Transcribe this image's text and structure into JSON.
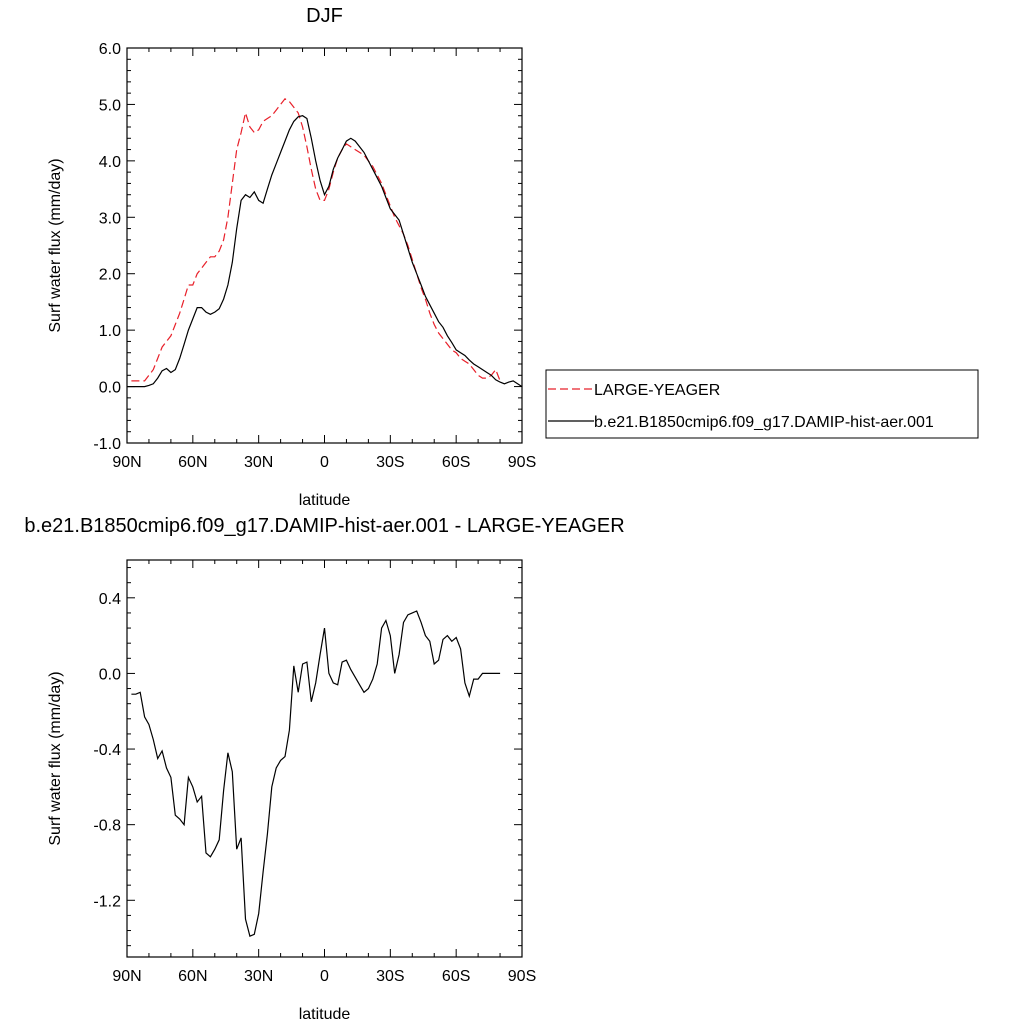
{
  "chart_data": [
    {
      "type": "line",
      "title": "DJF",
      "xlabel": "latitude",
      "ylabel": "Surf water flux (mm/day)",
      "xlim": [
        90,
        -90
      ],
      "ylim": [
        -1.0,
        6.0
      ],
      "xticks": [
        {
          "value": 90,
          "label": "90N"
        },
        {
          "value": 60,
          "label": "60N"
        },
        {
          "value": 30,
          "label": "30N"
        },
        {
          "value": 0,
          "label": "0"
        },
        {
          "value": -30,
          "label": "30S"
        },
        {
          "value": -60,
          "label": "60S"
        },
        {
          "value": -90,
          "label": "90S"
        }
      ],
      "yticks": [
        {
          "value": 6.0,
          "label": "6.0"
        },
        {
          "value": 5.0,
          "label": "5.0"
        },
        {
          "value": 4.0,
          "label": "4.0"
        },
        {
          "value": 3.0,
          "label": "3.0"
        },
        {
          "value": 2.0,
          "label": "2.0"
        },
        {
          "value": 1.0,
          "label": "1.0"
        },
        {
          "value": 0.0,
          "label": "0.0"
        },
        {
          "value": -1.0,
          "label": "-1.0"
        }
      ],
      "legend_position": "right",
      "series": [
        {
          "name": "LARGE-YEAGER",
          "color": "#e8202a",
          "dash": "dashed",
          "x": [
            88,
            85,
            82,
            80,
            78,
            76,
            74,
            72,
            70,
            68,
            66,
            64,
            62,
            60,
            58,
            56,
            54,
            52,
            50,
            48,
            46,
            44,
            42,
            40,
            38,
            36,
            34,
            32,
            30,
            28,
            26,
            24,
            22,
            20,
            18,
            16,
            14,
            12,
            10,
            8,
            6,
            4,
            2,
            0,
            -2,
            -4,
            -6,
            -8,
            -10,
            -12,
            -14,
            -16,
            -18,
            -20,
            -22,
            -24,
            -26,
            -28,
            -30,
            -32,
            -34,
            -36,
            -38,
            -40,
            -42,
            -44,
            -46,
            -48,
            -50,
            -52,
            -54,
            -56,
            -58,
            -60,
            -62,
            -64,
            -66,
            -68,
            -70,
            -72,
            -74,
            -76,
            -78,
            -80
          ],
          "y": [
            0.1,
            0.1,
            0.1,
            0.2,
            0.3,
            0.5,
            0.7,
            0.8,
            0.9,
            1.1,
            1.3,
            1.55,
            1.8,
            1.8,
            2.0,
            2.1,
            2.2,
            2.3,
            2.3,
            2.4,
            2.6,
            3.0,
            3.6,
            4.2,
            4.5,
            4.85,
            4.6,
            4.5,
            4.55,
            4.7,
            4.75,
            4.8,
            4.9,
            5.0,
            5.1,
            5.05,
            4.95,
            4.85,
            4.6,
            4.25,
            3.85,
            3.5,
            3.3,
            3.3,
            3.5,
            3.8,
            4.05,
            4.2,
            4.3,
            4.25,
            4.2,
            4.15,
            4.1,
            4.0,
            3.9,
            3.75,
            3.6,
            3.4,
            3.2,
            3.0,
            2.85,
            2.7,
            2.5,
            2.25,
            2.0,
            1.75,
            1.55,
            1.3,
            1.1,
            0.95,
            0.85,
            0.75,
            0.65,
            0.6,
            0.5,
            0.45,
            0.4,
            0.3,
            0.2,
            0.15,
            0.15,
            0.2,
            0.3,
            0.1
          ]
        },
        {
          "name": "b.e21.B1850cmip6.f09_g17.DAMIP-hist-aer.001",
          "color": "#000000",
          "dash": "solid",
          "x": [
            90,
            86,
            84,
            82,
            80,
            78,
            76,
            74,
            72,
            70,
            68,
            66,
            64,
            62,
            60,
            58,
            56,
            54,
            52,
            50,
            48,
            46,
            44,
            42,
            40,
            38,
            36,
            34,
            32,
            30,
            28,
            26,
            24,
            22,
            20,
            18,
            16,
            14,
            12,
            10,
            8,
            6,
            4,
            2,
            0,
            -2,
            -4,
            -6,
            -8,
            -10,
            -12,
            -14,
            -16,
            -18,
            -20,
            -22,
            -24,
            -26,
            -28,
            -30,
            -32,
            -34,
            -36,
            -38,
            -40,
            -42,
            -44,
            -46,
            -48,
            -50,
            -52,
            -54,
            -56,
            -58,
            -60,
            -62,
            -64,
            -66,
            -68,
            -70,
            -72,
            -74,
            -76,
            -78,
            -80,
            -82,
            -84,
            -86,
            -88,
            -90
          ],
          "y": [
            0.0,
            0.0,
            0.0,
            0.0,
            0.02,
            0.05,
            0.15,
            0.28,
            0.32,
            0.25,
            0.3,
            0.5,
            0.75,
            1.0,
            1.2,
            1.4,
            1.4,
            1.32,
            1.28,
            1.32,
            1.38,
            1.55,
            1.8,
            2.2,
            2.8,
            3.3,
            3.4,
            3.35,
            3.45,
            3.3,
            3.25,
            3.5,
            3.75,
            3.95,
            4.15,
            4.35,
            4.55,
            4.7,
            4.78,
            4.8,
            4.75,
            4.4,
            4.0,
            3.65,
            3.4,
            3.55,
            3.85,
            4.05,
            4.2,
            4.35,
            4.4,
            4.35,
            4.25,
            4.15,
            4.0,
            3.85,
            3.7,
            3.55,
            3.35,
            3.15,
            3.05,
            2.95,
            2.7,
            2.45,
            2.2,
            2.0,
            1.8,
            1.6,
            1.45,
            1.3,
            1.15,
            1.05,
            0.9,
            0.78,
            0.65,
            0.6,
            0.55,
            0.47,
            0.4,
            0.35,
            0.3,
            0.25,
            0.2,
            0.12,
            0.08,
            0.05,
            0.08,
            0.1,
            0.05,
            0.0
          ]
        }
      ]
    },
    {
      "type": "line",
      "title": "b.e21.B1850cmip6.f09_g17.DAMIP-hist-aer.001 - LARGE-YEAGER",
      "xlabel": "latitude",
      "ylabel": "Surf water flux (mm/day)",
      "xlim": [
        90,
        -90
      ],
      "ylim": [
        -1.5,
        0.6
      ],
      "xticks": [
        {
          "value": 90,
          "label": "90N"
        },
        {
          "value": 60,
          "label": "60N"
        },
        {
          "value": 30,
          "label": "30N"
        },
        {
          "value": 0,
          "label": "0"
        },
        {
          "value": -30,
          "label": "30S"
        },
        {
          "value": -60,
          "label": "60S"
        },
        {
          "value": -90,
          "label": "90S"
        }
      ],
      "yticks": [
        {
          "value": 0.4,
          "label": "0.4"
        },
        {
          "value": 0.0,
          "label": "0.0"
        },
        {
          "value": -0.4,
          "label": "-0.4"
        },
        {
          "value": -0.8,
          "label": "-0.8"
        },
        {
          "value": -1.2,
          "label": "-1.2"
        }
      ],
      "series": [
        {
          "name": "",
          "color": "#000000",
          "dash": "solid",
          "x": [
            88,
            86,
            84,
            82,
            80,
            78,
            76,
            74,
            72,
            70,
            68,
            66,
            64,
            62,
            60,
            58,
            56,
            54,
            52,
            50,
            48,
            46,
            44,
            42,
            40,
            38,
            36,
            34,
            32,
            30,
            28,
            26,
            24,
            22,
            20,
            18,
            16,
            14,
            12,
            10,
            8,
            6,
            4,
            2,
            0,
            -2,
            -4,
            -6,
            -8,
            -10,
            -12,
            -14,
            -16,
            -18,
            -20,
            -22,
            -24,
            -26,
            -28,
            -30,
            -32,
            -34,
            -36,
            -38,
            -40,
            -42,
            -44,
            -46,
            -48,
            -50,
            -52,
            -54,
            -56,
            -58,
            -60,
            -62,
            -64,
            -66,
            -68,
            -70,
            -72,
            -74,
            -76,
            -78,
            -80
          ],
          "y": [
            -0.11,
            -0.11,
            -0.1,
            -0.23,
            -0.27,
            -0.35,
            -0.45,
            -0.41,
            -0.5,
            -0.55,
            -0.75,
            -0.77,
            -0.8,
            -0.55,
            -0.6,
            -0.68,
            -0.65,
            -0.95,
            -0.97,
            -0.93,
            -0.88,
            -0.62,
            -0.42,
            -0.52,
            -0.93,
            -0.87,
            -1.3,
            -1.39,
            -1.38,
            -1.27,
            -1.05,
            -0.85,
            -0.6,
            -0.5,
            -0.46,
            -0.44,
            -0.3,
            0.04,
            -0.1,
            0.05,
            0.06,
            -0.15,
            -0.05,
            0.1,
            0.24,
            0.0,
            -0.05,
            -0.06,
            0.06,
            0.07,
            0.02,
            -0.02,
            -0.06,
            -0.1,
            -0.08,
            -0.03,
            0.05,
            0.24,
            0.28,
            0.2,
            0.0,
            0.1,
            0.27,
            0.31,
            0.32,
            0.33,
            0.27,
            0.2,
            0.17,
            0.05,
            0.07,
            0.18,
            0.2,
            0.17,
            0.19,
            0.13,
            -0.05,
            -0.12,
            -0.03,
            -0.03,
            0.0,
            0.0,
            0.0,
            0.0,
            0.0
          ]
        }
      ]
    }
  ]
}
